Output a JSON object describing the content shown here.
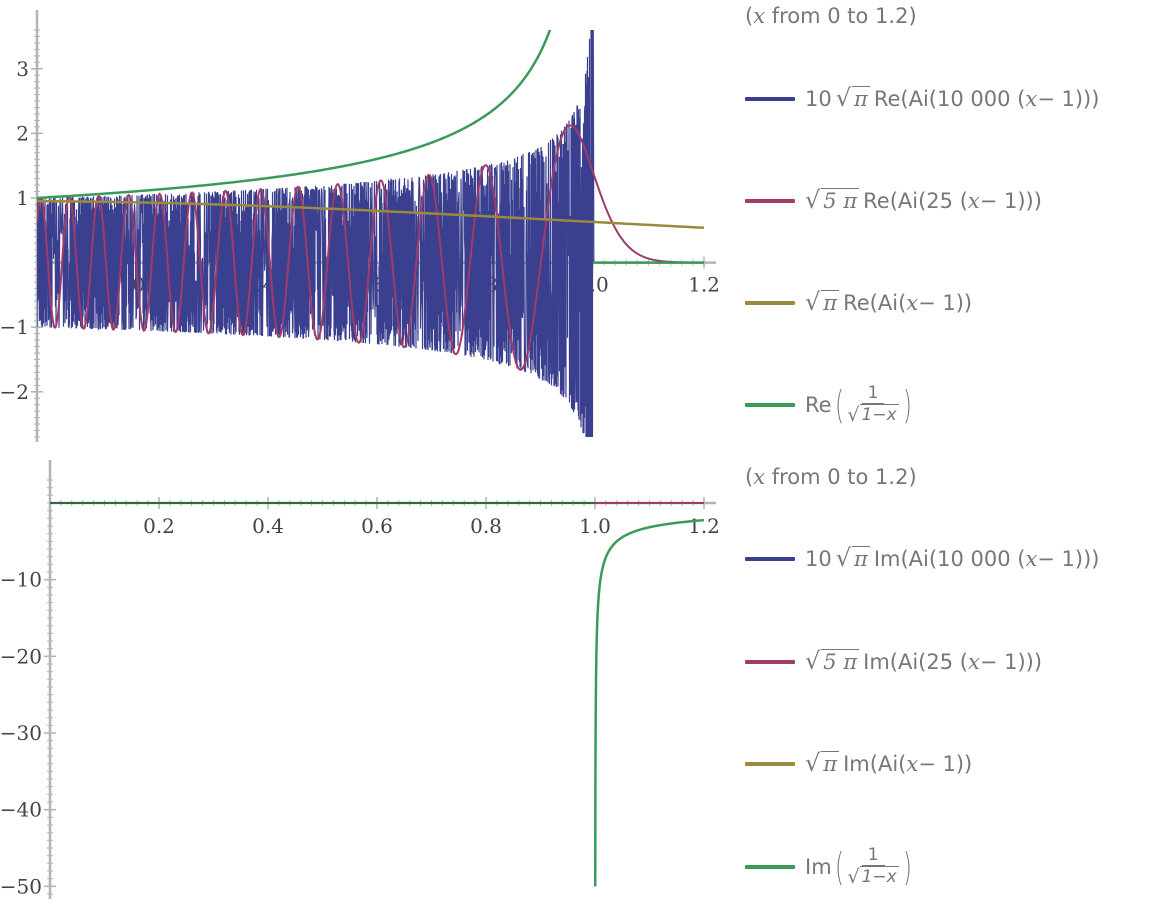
{
  "chart_data": [
    {
      "type": "line",
      "title": "",
      "xlabel": "",
      "ylabel": "",
      "xlim": [
        0,
        1.2
      ],
      "ylim": [
        -2.7,
        3.6
      ],
      "x_ticks": [
        "0.2",
        "0.4",
        "0.6",
        "0.8",
        "1.0",
        "1.2"
      ],
      "y_ticks": [
        "3",
        "2",
        "1",
        "−1",
        "−2"
      ],
      "legend_header": "(x from 0 to 1.2)",
      "legend_placement": "right",
      "series": [
        {
          "name": "10 √π Re(Ai(10000 (x − 1)))",
          "color": "#3b3f8f",
          "description_values": {
            "envelope_x": [
              0.0,
              0.2,
              0.4,
              0.6,
              0.8,
              0.9,
              0.95,
              0.99,
              1.0
            ],
            "envelope_y": [
              1.1,
              1.15,
              1.25,
              1.4,
              1.7,
              2.0,
              2.4,
              3.5,
              0.0
            ]
          }
        },
        {
          "name": "√5π Re(Ai(25 (x − 1)))",
          "color": "#a03b6a",
          "peaks_x": [
            0.0,
            0.1,
            0.2,
            0.3,
            0.4,
            0.5,
            0.6,
            0.7,
            0.8,
            0.96
          ],
          "peaks_y": [
            1.0,
            1.03,
            1.07,
            1.1,
            1.15,
            1.22,
            1.31,
            1.44,
            1.52,
            2.12
          ]
        },
        {
          "name": "√π Re(Ai(x − 1))",
          "color": "#9b8a3c",
          "x": [
            0.0,
            0.2,
            0.4,
            0.6,
            0.8,
            1.0,
            1.2
          ],
          "y": [
            0.95,
            0.94,
            0.9,
            0.83,
            0.74,
            0.63,
            0.53
          ]
        },
        {
          "name": "Re(1/√(1−x))",
          "color": "#3a9a5a",
          "x": [
            0.0,
            0.2,
            0.4,
            0.6,
            0.8,
            0.9,
            0.92
          ],
          "y": [
            1.0,
            1.12,
            1.29,
            1.58,
            2.24,
            3.16,
            3.54
          ]
        }
      ]
    },
    {
      "type": "line",
      "title": "",
      "xlabel": "",
      "ylabel": "",
      "xlim": [
        0,
        1.2
      ],
      "ylim": [
        -51,
        3
      ],
      "x_ticks": [
        "0.2",
        "0.4",
        "0.6",
        "0.8",
        "1.0",
        "1.2"
      ],
      "y_ticks": [
        "−10",
        "−20",
        "−30",
        "−40",
        "−50"
      ],
      "legend_header": "(x from 0 to 1.2)",
      "legend_placement": "right",
      "series": [
        {
          "name": "10 √π Im(Ai(10000 (x − 1)))",
          "color": "#3b3f8f",
          "x": [
            0,
            1.2
          ],
          "y": [
            0,
            0
          ]
        },
        {
          "name": "√5π Im(Ai(25 (x − 1)))",
          "color": "#a03b6a",
          "x": [
            0,
            1.2
          ],
          "y": [
            0,
            0
          ]
        },
        {
          "name": "√π Im(Ai(x − 1))",
          "color": "#9b8a3c",
          "x": [
            0,
            1.2
          ],
          "y": [
            0,
            0
          ]
        },
        {
          "name": "Im(1/√(1−x))",
          "color": "#3a9a5a",
          "x": [
            1.0004,
            1.001,
            1.003,
            1.01,
            1.03,
            1.06,
            1.1,
            1.15,
            1.2
          ],
          "y": [
            -50,
            -31.6,
            -18.3,
            -10.0,
            -5.77,
            -4.08,
            -3.16,
            -2.58,
            -2.24
          ]
        }
      ]
    }
  ],
  "legend": {
    "top": {
      "header_italic": "x",
      "header_rest": " from 0 to 1.2)",
      "header_open": "(",
      "items": [
        {
          "prefix": "10",
          "sqrt_arg": "π",
          "text": "Re(Ai(10 000 (",
          "var": "x",
          "tail": " − 1)))"
        },
        {
          "prefix": "",
          "sqrt_arg": "5 π",
          "text": "Re(Ai(25 (",
          "var": "x",
          "tail": " − 1)))"
        },
        {
          "prefix": "",
          "sqrt_arg": "π",
          "text": "Re(Ai(",
          "var": "x",
          "tail": " − 1))"
        },
        {
          "fn": "Re",
          "num": "1",
          "den": "1−x"
        }
      ]
    },
    "bottom": {
      "header_italic": "x",
      "header_rest": " from 0 to 1.2)",
      "header_open": "(",
      "items": [
        {
          "prefix": "10",
          "sqrt_arg": "π",
          "text": "Im(Ai(10 000 (",
          "var": "x",
          "tail": " − 1)))"
        },
        {
          "prefix": "",
          "sqrt_arg": "5 π",
          "text": "Im(Ai(25 (",
          "var": "x",
          "tail": " − 1)))"
        },
        {
          "prefix": "",
          "sqrt_arg": "π",
          "text": "Im(Ai(",
          "var": "x",
          "tail": " − 1))"
        },
        {
          "fn": "Im",
          "num": "1",
          "den": "1−x"
        }
      ]
    }
  }
}
